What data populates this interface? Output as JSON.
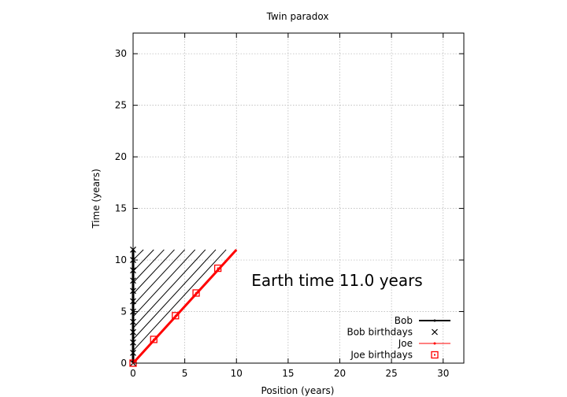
{
  "chart_data": {
    "type": "line",
    "title": "Twin paradox",
    "xlabel": "Position (years)",
    "ylabel": "Time (years)",
    "xlim": [
      0,
      32
    ],
    "ylim": [
      0,
      32
    ],
    "xticks": [
      0,
      5,
      10,
      15,
      20,
      25,
      30
    ],
    "yticks": [
      0,
      5,
      10,
      15,
      20,
      25,
      30
    ],
    "grid": true,
    "legend_position": "bottom-right",
    "annotation": "Earth time 11.0 years",
    "series": [
      {
        "name": "Bob",
        "color": "#000000",
        "x": [
          0,
          0
        ],
        "y": [
          0,
          11
        ]
      },
      {
        "name": "Bob birthdays",
        "color": "#000000",
        "marker": "x",
        "x": [
          0,
          0,
          0,
          0,
          0,
          0,
          0,
          0,
          0,
          0,
          0,
          0
        ],
        "y": [
          0,
          1,
          2,
          3,
          4,
          5,
          6,
          7,
          8,
          9,
          10,
          11
        ]
      },
      {
        "name": "Joe",
        "color": "#ff0000",
        "x": [
          0,
          10
        ],
        "y": [
          0,
          11
        ]
      },
      {
        "name": "Joe birthdays",
        "color": "#ff0000",
        "marker": "square",
        "x": [
          0,
          2,
          4.1,
          6.1,
          8.2
        ],
        "y": [
          0,
          2.3,
          4.6,
          6.8,
          9.2
        ]
      }
    ],
    "hatch_lines": [
      {
        "x": [
          0,
          1.0
        ],
        "y": [
          10,
          11
        ]
      },
      {
        "x": [
          0,
          2.0
        ],
        "y": [
          8.9,
          11
        ]
      },
      {
        "x": [
          0,
          3.0
        ],
        "y": [
          7.8,
          11
        ]
      },
      {
        "x": [
          0,
          4.0
        ],
        "y": [
          6.7,
          11
        ]
      },
      {
        "x": [
          0,
          5.0
        ],
        "y": [
          5.6,
          11
        ]
      },
      {
        "x": [
          0,
          6.0
        ],
        "y": [
          4.5,
          11
        ]
      },
      {
        "x": [
          0,
          7.0
        ],
        "y": [
          3.4,
          11
        ]
      },
      {
        "x": [
          0,
          8.0
        ],
        "y": [
          2.3,
          11
        ]
      },
      {
        "x": [
          0,
          9.0
        ],
        "y": [
          1.2,
          11
        ]
      }
    ]
  }
}
